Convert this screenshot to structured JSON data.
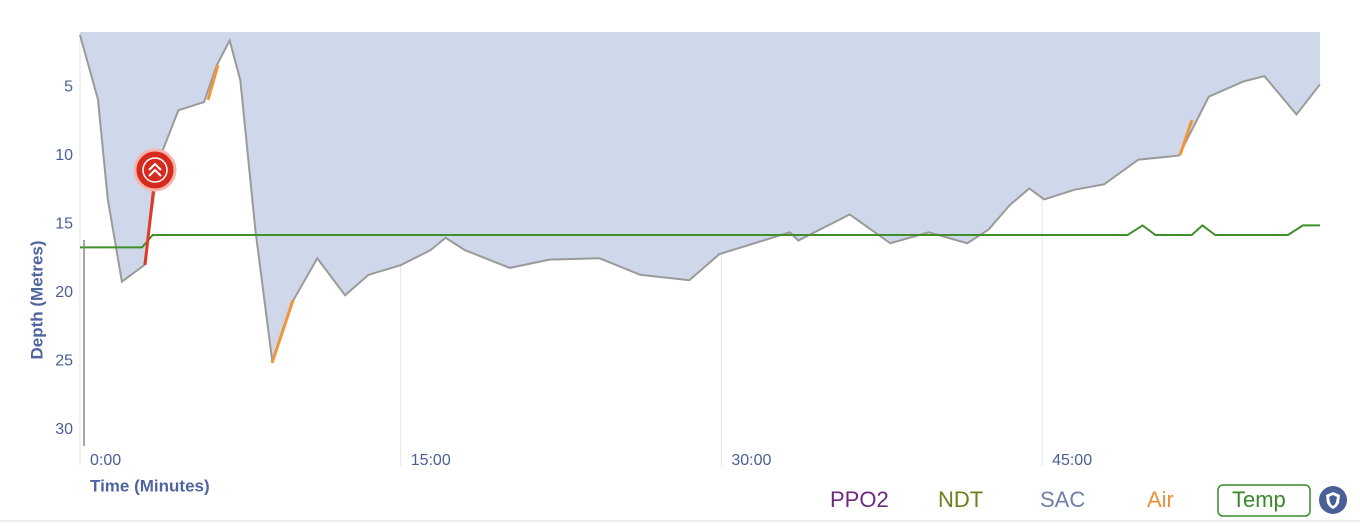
{
  "chart_data": {
    "type": "area",
    "x_label": "Time (Minutes)",
    "y_label": "Depth (Metres)",
    "x": [
      0,
      0.84,
      1.3,
      1.96,
      3.0,
      3.7,
      4.6,
      5.8,
      6.4,
      7.0,
      7.5,
      8.2,
      9.0,
      10,
      11.1,
      12.4,
      13.5,
      15,
      16.4,
      17.1,
      18,
      20.1,
      21.96,
      24.3,
      26.2,
      28.5,
      29.9,
      33.2,
      33.6,
      36,
      37.9,
      39.7,
      41.5,
      42.5,
      43.5,
      44.4,
      45.1,
      46.5,
      47.9,
      49.5,
      51.4,
      52.8,
      54.4,
      55.4,
      56.9,
      58
    ],
    "values": [
      0,
      4.7,
      12,
      18,
      16.8,
      9.1,
      5.5,
      4.9,
      2.2,
      0.4,
      3.3,
      14.2,
      23.9,
      19.3,
      16.3,
      19,
      17.5,
      16.8,
      15.7,
      14.8,
      15.7,
      17,
      16.4,
      16.3,
      17.5,
      17.9,
      16,
      14.4,
      15,
      13.1,
      15.2,
      14.4,
      15.2,
      14.2,
      12.4,
      11.2,
      12,
      11.3,
      10.9,
      9.1,
      8.8,
      4.5,
      3.4,
      3.0,
      5.8,
      3.6
    ],
    "color": "#cfd8ea",
    "temperature": {
      "x": [
        0,
        2.9,
        3.4,
        10,
        30,
        49,
        49.7,
        50.3,
        52,
        52.5,
        53.1,
        56.5,
        57.2,
        58
      ],
      "values": [
        15.5,
        15.5,
        14.6,
        14.6,
        14.6,
        14.6,
        13.9,
        14.6,
        14.6,
        13.9,
        14.6,
        14.6,
        13.9,
        13.9
      ],
      "color": "#3f8f2a"
    },
    "xlim": [
      0,
      58
    ],
    "ylim": [
      0,
      30
    ],
    "xticks": [
      {
        "value": 0,
        "label": "0:00"
      },
      {
        "value": 15,
        "label": "15:00"
      },
      {
        "value": 30,
        "label": "30:00"
      },
      {
        "value": 45,
        "label": "45:00"
      }
    ],
    "yticks": [
      5,
      10,
      15,
      20,
      25,
      30
    ],
    "grid": true,
    "legend": [
      {
        "label": "PPO2",
        "color": "#6b2a7e"
      },
      {
        "label": "NDT",
        "color": "#6e7e1e"
      },
      {
        "label": "SAC",
        "color": "#6f7fa8"
      },
      {
        "label": "Air",
        "color": "#e8923a"
      },
      {
        "label": "Temp",
        "color": "#3a8a2a"
      }
    ]
  }
}
